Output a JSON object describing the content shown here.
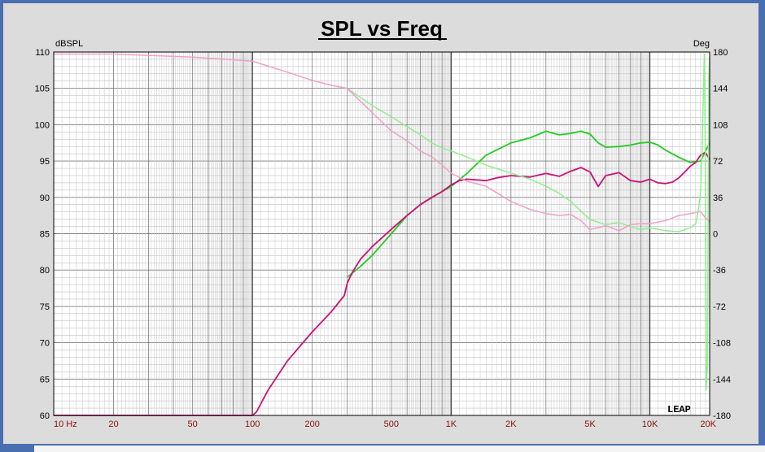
{
  "chart_data": {
    "type": "line",
    "title": "SPL vs Freq",
    "ylabel": "dBSPL",
    "y2label": "Deg",
    "xscale": "log",
    "xlim": [
      10,
      20000
    ],
    "ylim": [
      60,
      110
    ],
    "y2lim": [
      -180,
      180
    ],
    "grid": true,
    "xtick_labels": [
      "10 Hz",
      "20",
      "50",
      "100",
      "200",
      "500",
      "1K",
      "2K",
      "5K",
      "10K",
      "20K"
    ],
    "ytick_labels": [
      "110",
      "105",
      "100",
      "95",
      "90",
      "85",
      "80",
      "75",
      "70",
      "65",
      "60"
    ],
    "y2tick_labels": [
      "180",
      "144",
      "108",
      "72",
      "36",
      "0",
      "-36",
      "-72",
      "-108",
      "-144",
      "-180"
    ],
    "logo": "LEAP",
    "series": [
      {
        "color": "#22cc22",
        "axis": "left",
        "x": [
          300,
          350,
          400,
          500,
          600,
          700,
          800,
          900,
          1000,
          1200,
          1500,
          2000,
          2500,
          3000,
          3500,
          4000,
          4500,
          5000,
          5500,
          6000,
          7000,
          8000,
          9000,
          10000,
          11000,
          12000,
          14000,
          16000,
          18000,
          20000
        ],
        "y": [
          79,
          80.5,
          82,
          85,
          87.5,
          89,
          90,
          90.8,
          91.5,
          93.3,
          95.8,
          97.5,
          98.2,
          99.1,
          98.6,
          98.8,
          99.1,
          98.7,
          97.5,
          96.9,
          97.0,
          97.2,
          97.5,
          97.6,
          97.2,
          96.5,
          95.5,
          94.8,
          95.0,
          97.5
        ]
      },
      {
        "color": "#cc1177",
        "axis": "left",
        "x": [
          10,
          100,
          105,
          120,
          150,
          200,
          250,
          290,
          300,
          320,
          350,
          400,
          500,
          600,
          700,
          800,
          900,
          1000,
          1100,
          1200,
          1500,
          1700,
          2000,
          2500,
          3000,
          3500,
          4000,
          4500,
          5000,
          5500,
          6000,
          7000,
          8000,
          9000,
          10000,
          11000,
          12000,
          13000,
          14000,
          15000,
          16000,
          17000,
          18000,
          19000,
          20000
        ],
        "y": [
          60,
          60,
          60.5,
          63.5,
          67.5,
          71.5,
          74.3,
          76.5,
          78.2,
          79.8,
          81.5,
          83.2,
          85.6,
          87.5,
          89,
          90,
          90.8,
          91.7,
          92.3,
          92.5,
          92.3,
          92.7,
          93.0,
          92.8,
          93.3,
          92.9,
          93.6,
          94.1,
          93.5,
          91.5,
          93.0,
          93.4,
          92.3,
          92.1,
          92.5,
          92.0,
          91.9,
          92.1,
          92.7,
          93.5,
          94.3,
          94.8,
          95.8,
          96.2,
          95.2
        ]
      },
      {
        "color": "#90ee90",
        "axis": "right",
        "x": [
          300,
          400,
          500,
          600,
          700,
          800,
          900,
          1000,
          1200,
          1500,
          2000,
          2500,
          3000,
          3500,
          4000,
          5000,
          6000,
          7000,
          8000,
          9000,
          10000,
          12000,
          14000,
          15000,
          16000,
          17000,
          17500,
          18000,
          18300,
          18600,
          18800,
          19000,
          19200,
          19500,
          19800,
          20000
        ],
        "y": [
          144,
          127,
          116,
          106,
          98,
          90,
          85,
          82,
          76,
          68,
          60,
          54,
          47,
          40,
          32,
          14,
          9,
          11,
          7,
          4,
          6,
          3,
          2,
          4,
          6,
          10,
          22,
          40,
          80,
          140,
          178,
          90,
          -155,
          -130,
          155,
          175
        ]
      },
      {
        "color": "#f0a0c8",
        "axis": "right",
        "x": [
          10,
          20,
          50,
          100,
          120,
          150,
          200,
          250,
          300,
          400,
          500,
          600,
          700,
          800,
          900,
          1000,
          1200,
          1500,
          2000,
          2500,
          3000,
          3500,
          4000,
          4500,
          5000,
          6000,
          7000,
          8000,
          9000,
          10000,
          12000,
          14000,
          16000,
          18000,
          19000,
          20000
        ],
        "y": [
          178,
          178,
          175,
          171,
          166,
          160,
          152,
          147,
          144,
          120,
          102,
          92,
          82,
          76,
          68,
          60,
          52,
          47,
          32,
          24,
          20,
          18,
          19,
          13,
          4,
          8,
          3,
          9,
          10,
          10,
          13,
          18,
          20,
          22,
          16,
          12
        ]
      }
    ]
  }
}
